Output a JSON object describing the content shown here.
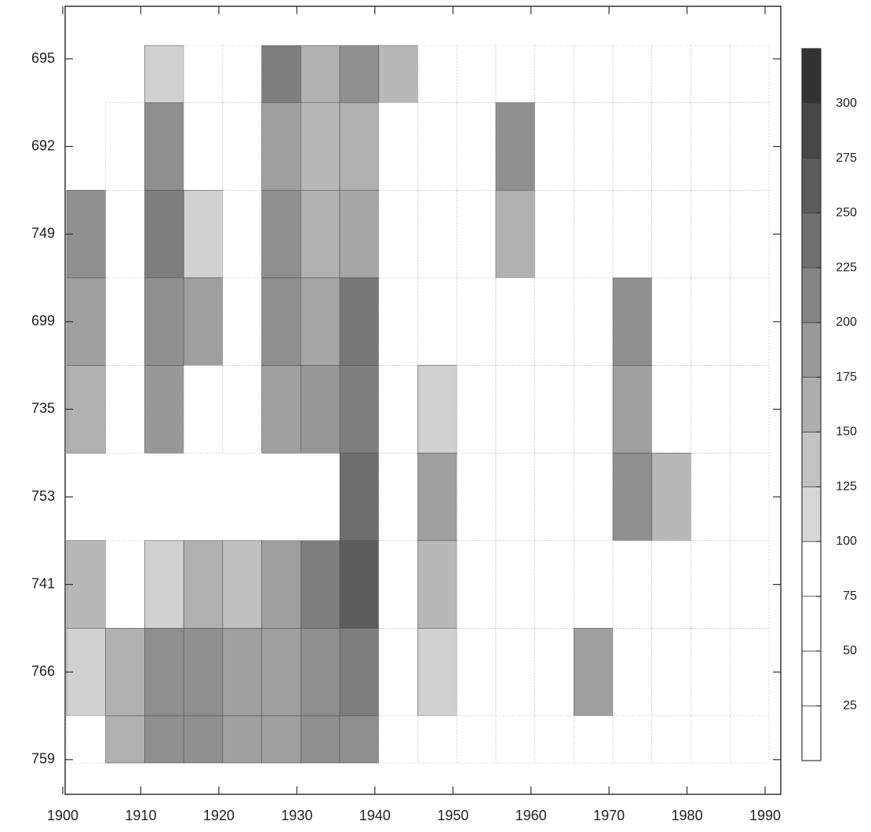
{
  "chart_data": {
    "type": "contour",
    "categories": [
      "695",
      "692",
      "749",
      "699",
      "735",
      "753",
      "741",
      "766",
      "759"
    ],
    "x": [
      1903,
      1908,
      1913,
      1918,
      1923,
      1928,
      1933,
      1938,
      1943,
      1948,
      1953,
      1958,
      1963,
      1968,
      1973,
      1978,
      1983,
      1988
    ],
    "xlim": [
      1900,
      1990
    ],
    "xticks": [
      1900,
      1910,
      1920,
      1930,
      1940,
      1950,
      1960,
      1970,
      1980,
      1990
    ],
    "z": [
      [
        null,
        null,
        120,
        90,
        80,
        220,
        160,
        200,
        150,
        80,
        60,
        100,
        50,
        40,
        60,
        40,
        40,
        40
      ],
      [
        null,
        60,
        200,
        100,
        80,
        180,
        150,
        160,
        100,
        60,
        90,
        200,
        50,
        40,
        40,
        40,
        80,
        50
      ],
      [
        200,
        60,
        220,
        120,
        90,
        200,
        160,
        170,
        100,
        60,
        80,
        160,
        40,
        40,
        60,
        30,
        60,
        40
      ],
      [
        180,
        80,
        200,
        180,
        60,
        200,
        170,
        230,
        80,
        40,
        40,
        60,
        40,
        60,
        200,
        60,
        40,
        40
      ],
      [
        160,
        60,
        190,
        100,
        80,
        180,
        190,
        220,
        80,
        120,
        60,
        60,
        40,
        40,
        180,
        100,
        40,
        40
      ],
      [
        null,
        null,
        null,
        null,
        null,
        null,
        null,
        240,
        100,
        180,
        80,
        90,
        50,
        60,
        200,
        150,
        40,
        40
      ],
      [
        150,
        80,
        120,
        160,
        140,
        180,
        220,
        260,
        60,
        150,
        40,
        40,
        40,
        40,
        60,
        60,
        40,
        40
      ],
      [
        120,
        160,
        200,
        200,
        180,
        180,
        200,
        220,
        80,
        120,
        40,
        60,
        40,
        180,
        60,
        40,
        40,
        40
      ],
      [
        80,
        160,
        200,
        200,
        180,
        180,
        200,
        200,
        60,
        100,
        40,
        80,
        40,
        100,
        60,
        40,
        40,
        40
      ]
    ],
    "clim": [
      0,
      325
    ],
    "cticks": [
      25,
      50,
      75,
      100,
      125,
      150,
      175,
      200,
      225,
      250,
      275,
      300
    ]
  }
}
